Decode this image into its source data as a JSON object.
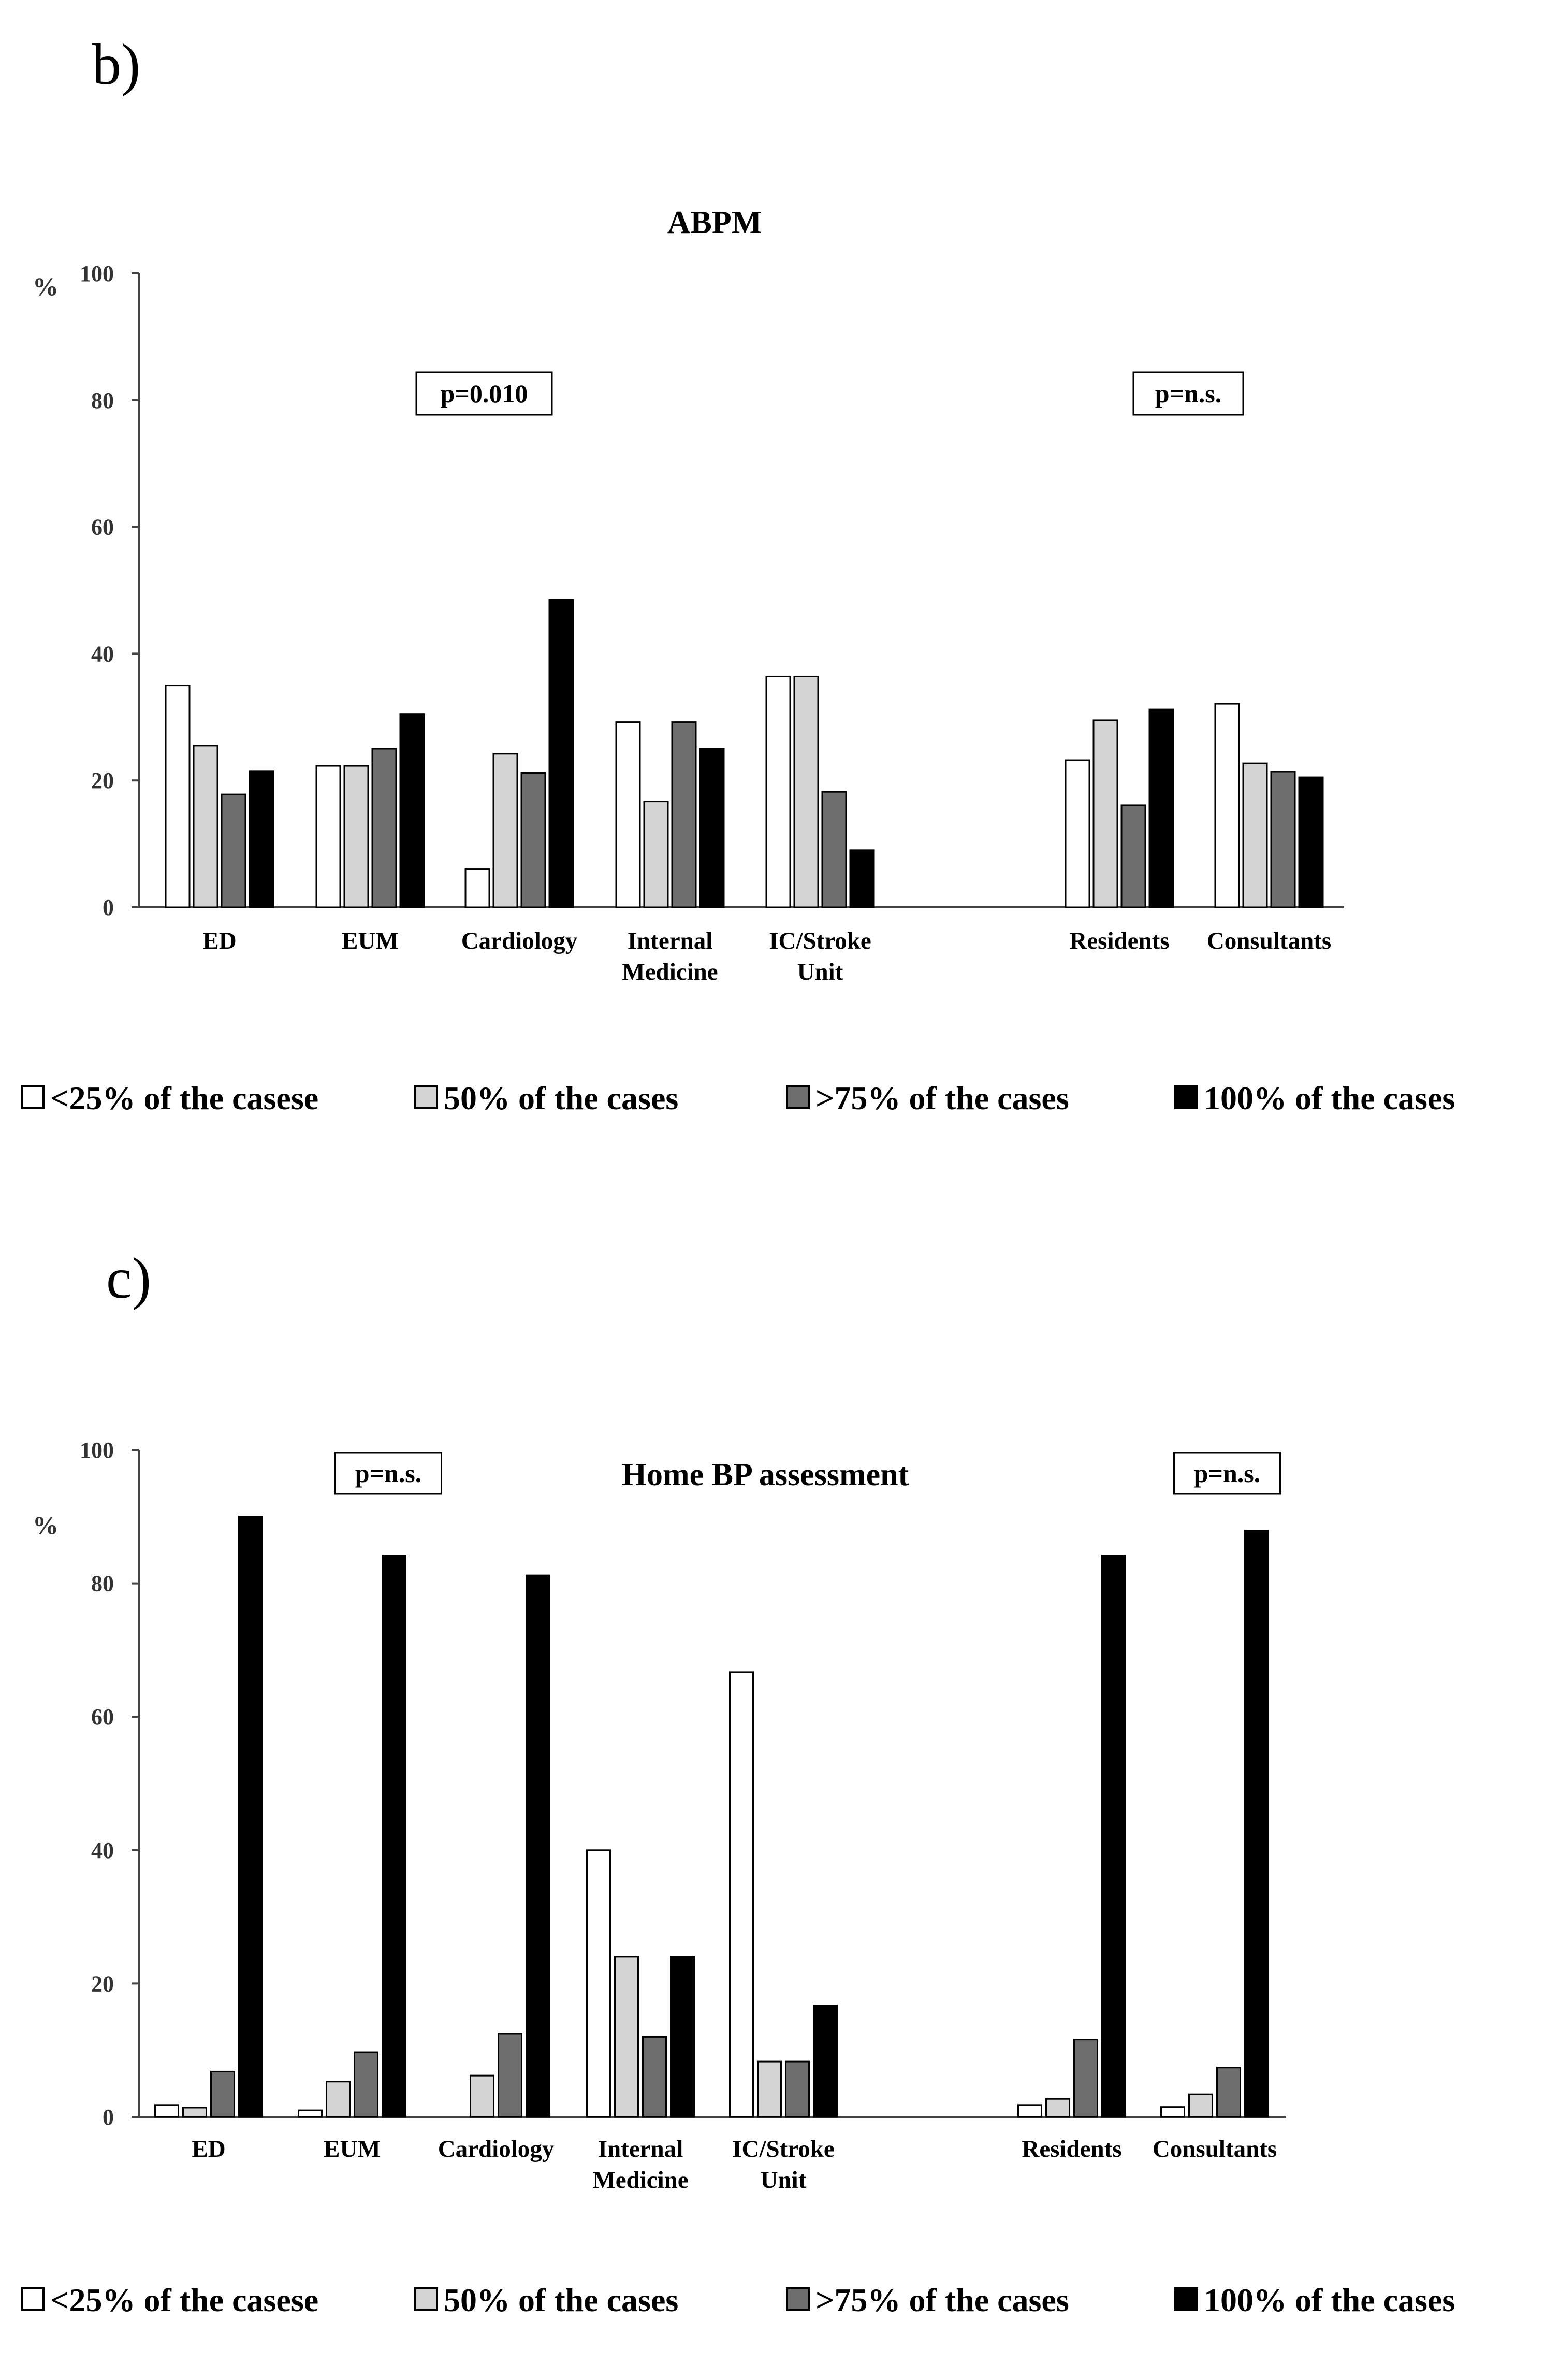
{
  "panels": [
    {
      "panel_label": "b)",
      "chart_data": {
        "type": "bar",
        "title": "ABPM",
        "ylabel": "%",
        "xlabel": "",
        "ylim": [
          0,
          100
        ],
        "yticks": [
          0,
          20,
          40,
          60,
          80,
          100
        ],
        "grid": false,
        "categories": [
          [
            "ED"
          ],
          [
            "EUM"
          ],
          [
            "Cardiology"
          ],
          [
            "Internal",
            "Medicine"
          ],
          [
            "IC/Stroke",
            "Unit"
          ],
          [
            "Residents"
          ],
          [
            "Consultants"
          ]
        ],
        "series": [
          {
            "name": "<25% of the casese",
            "color": "#ffffff",
            "values": [
              35,
              22.3,
              6,
              29.2,
              36.4,
              23.2,
              32.1
            ]
          },
          {
            "name": "50% of the cases",
            "color": "#d4d4d4",
            "values": [
              25.5,
              22.3,
              24.2,
              16.7,
              36.4,
              29.5,
              22.7
            ]
          },
          {
            "name": ">75% of the cases",
            "color": "#6e6e6e",
            "values": [
              17.8,
              25,
              21.2,
              29.2,
              18.2,
              16.1,
              21.4
            ]
          },
          {
            "name": "100% of the cases",
            "color": "#000000",
            "values": [
              21.5,
              30.5,
              48.5,
              25,
              9,
              31.2,
              20.5
            ]
          }
        ],
        "annotations": [
          "p=0.010",
          "p=n.s."
        ]
      }
    },
    {
      "panel_label": "c)",
      "chart_data": {
        "type": "bar",
        "title": "Home BP assessment",
        "ylabel": "%",
        "xlabel": "",
        "ylim": [
          0,
          100
        ],
        "yticks": [
          0,
          20,
          40,
          60,
          80,
          100
        ],
        "grid": false,
        "categories": [
          [
            "ED"
          ],
          [
            "EUM"
          ],
          [
            "Cardiology"
          ],
          [
            "Internal",
            "Medicine"
          ],
          [
            "IC/Stroke",
            "Unit"
          ],
          [
            "Residents"
          ],
          [
            "Consultants"
          ]
        ],
        "series": [
          {
            "name": "<25% of the casese",
            "color": "#ffffff",
            "values": [
              1.8,
              1,
              0,
              40,
              66.7,
              1.8,
              1.5
            ]
          },
          {
            "name": "50% of the cases",
            "color": "#d4d4d4",
            "values": [
              1.4,
              5.3,
              6.2,
              24,
              8.3,
              2.7,
              3.4
            ]
          },
          {
            "name": ">75% of the cases",
            "color": "#6e6e6e",
            "values": [
              6.8,
              9.7,
              12.5,
              12,
              8.3,
              11.6,
              7.4
            ]
          },
          {
            "name": "100% of the cases",
            "color": "#000000",
            "values": [
              90,
              84.2,
              81.2,
              24,
              16.7,
              84.2,
              87.9
            ]
          }
        ],
        "annotations": [
          "p=n.s.",
          "p=n.s."
        ]
      }
    }
  ]
}
